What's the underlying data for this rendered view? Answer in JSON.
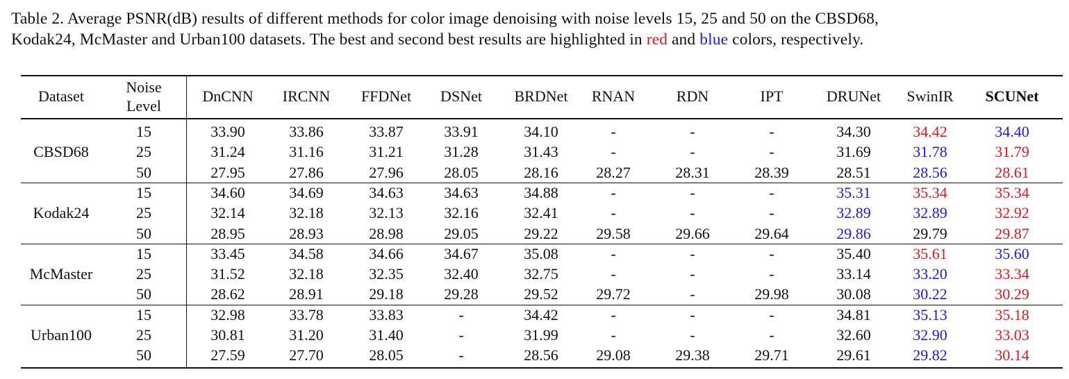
{
  "caption": {
    "line1": "Table 2.  Average PSNR(dB) results of different methods for color image denoising with noise levels 15, 25 and 50 on the CBSD68,",
    "line2_start": "Kodak24, McMaster and Urban100 datasets. The best and second best results are highlighted in",
    "red": "red",
    "and": "and",
    "blue": "blue",
    "line2_end": "colors, respectively."
  },
  "table": {
    "header": {
      "dataset": "Dataset",
      "noise": [
        "Noise",
        "Level"
      ],
      "methods": [
        "DnCNN",
        "IRCNN",
        "FFDNet",
        "DSNet",
        "BRDNet",
        "RNAN",
        "RDN",
        "IPT",
        "DRUNet",
        "SwinIR",
        "SCUNet"
      ]
    },
    "groups": [
      {
        "dataset": "CBSD68",
        "rows": [
          {
            "noise": "15",
            "cells": [
              "33.90",
              "33.86",
              "33.87",
              "33.91",
              "34.10",
              "-",
              "-",
              "-",
              "34.30",
              {
                "text": "34.42",
                "color": "#e8141b"
              },
              {
                "text": "34.40",
                "color": "#1a1ae6"
              }
            ]
          },
          {
            "noise": "25",
            "cells": [
              "31.24",
              "31.16",
              "31.21",
              "31.28",
              "31.43",
              "-",
              "-",
              "-",
              "31.69",
              {
                "text": "31.78",
                "color": "#1a1ae6"
              },
              {
                "text": "31.79",
                "color": "#e8141b"
              }
            ]
          },
          {
            "noise": "50",
            "cells": [
              "27.95",
              "27.86",
              "27.96",
              "28.05",
              "28.16",
              "28.27",
              "28.31",
              "28.39",
              "28.51",
              {
                "text": "28.56",
                "color": "#1a1ae6"
              },
              {
                "text": "28.61",
                "color": "#e8141b"
              }
            ]
          }
        ]
      },
      {
        "dataset": "Kodak24",
        "rows": [
          {
            "noise": "15",
            "cells": [
              "34.60",
              "34.69",
              "34.63",
              "34.63",
              "34.88",
              "-",
              "-",
              "-",
              {
                "text": "35.31",
                "color": "#1a1ae6"
              },
              {
                "text": "35.34",
                "color": "#e8141b"
              },
              {
                "text": "35.34",
                "color": "#e8141b"
              }
            ]
          },
          {
            "noise": "25",
            "cells": [
              "32.14",
              "32.18",
              "32.13",
              "32.16",
              "32.41",
              "-",
              "-",
              "-",
              {
                "text": "32.89",
                "color": "#1a1ae6"
              },
              {
                "text": "32.89",
                "color": "#1a1ae6"
              },
              {
                "text": "32.92",
                "color": "#e8141b"
              }
            ]
          },
          {
            "noise": "50",
            "cells": [
              "28.95",
              "28.93",
              "28.98",
              "29.05",
              "29.22",
              "29.58",
              "29.66",
              "29.64",
              {
                "text": "29.86",
                "color": "#1a1ae6"
              },
              "29.79",
              {
                "text": "29.87",
                "color": "#e8141b"
              }
            ]
          }
        ]
      },
      {
        "dataset": "McMaster",
        "rows": [
          {
            "noise": "15",
            "cells": [
              "33.45",
              "34.58",
              "34.66",
              "34.67",
              "35.08",
              "-",
              "-",
              "-",
              "35.40",
              {
                "text": "35.61",
                "color": "#e8141b"
              },
              {
                "text": "35.60",
                "color": "#1a1ae6"
              }
            ]
          },
          {
            "noise": "25",
            "cells": [
              "31.52",
              "32.18",
              "32.35",
              "32.40",
              "32.75",
              "-",
              "-",
              "-",
              "33.14",
              {
                "text": "33.20",
                "color": "#1a1ae6"
              },
              {
                "text": "33.34",
                "color": "#e8141b"
              }
            ]
          },
          {
            "noise": "50",
            "cells": [
              "28.62",
              "28.91",
              "29.18",
              "29.28",
              "29.52",
              "29.72",
              "-",
              "29.98",
              "30.08",
              {
                "text": "30.22",
                "color": "#1a1ae6"
              },
              {
                "text": "30.29",
                "color": "#e8141b"
              }
            ]
          }
        ]
      },
      {
        "dataset": "Urban100",
        "rows": [
          {
            "noise": "15",
            "cells": [
              "32.98",
              "33.78",
              "33.83",
              "-",
              "34.42",
              "-",
              "-",
              "-",
              "34.81",
              {
                "text": "35.13",
                "color": "#1a1ae6"
              },
              {
                "text": "35.18",
                "color": "#e8141b"
              }
            ]
          },
          {
            "noise": "25",
            "cells": [
              "30.81",
              "31.20",
              "31.40",
              "-",
              "31.99",
              "-",
              "-",
              "-",
              "32.60",
              {
                "text": "32.90",
                "color": "#1a1ae6"
              },
              {
                "text": "33.03",
                "color": "#e8141b"
              }
            ]
          },
          {
            "noise": "50",
            "cells": [
              "27.59",
              "27.70",
              "28.05",
              "-",
              "28.56",
              "29.08",
              "29.38",
              "29.71",
              "29.61",
              {
                "text": "29.82",
                "color": "#1a1ae6"
              },
              {
                "text": "30.14",
                "color": "#e8141b"
              }
            ]
          }
        ]
      }
    ]
  }
}
